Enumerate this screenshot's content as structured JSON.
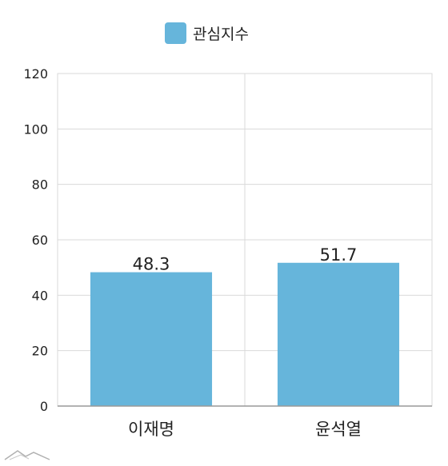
{
  "chart_data": {
    "type": "bar",
    "categories": [
      "이재명",
      "윤석열"
    ],
    "series": [
      {
        "name": "관심지수",
        "values": [
          48.3,
          51.7
        ],
        "color": "#66b5db"
      }
    ],
    "data_labels": [
      "48.3",
      "51.7"
    ],
    "ylim": [
      0,
      120
    ],
    "yticks": [
      0,
      20,
      40,
      60,
      80,
      100,
      120
    ],
    "grid": true,
    "legend_position": "top-center",
    "xlabel": "",
    "ylabel": ""
  },
  "colors": {
    "bar": "#66b5db",
    "grid": "#d9d9d9",
    "axis": "#999999",
    "text": "#222222"
  },
  "logo_icon": "mountain-logo-icon"
}
